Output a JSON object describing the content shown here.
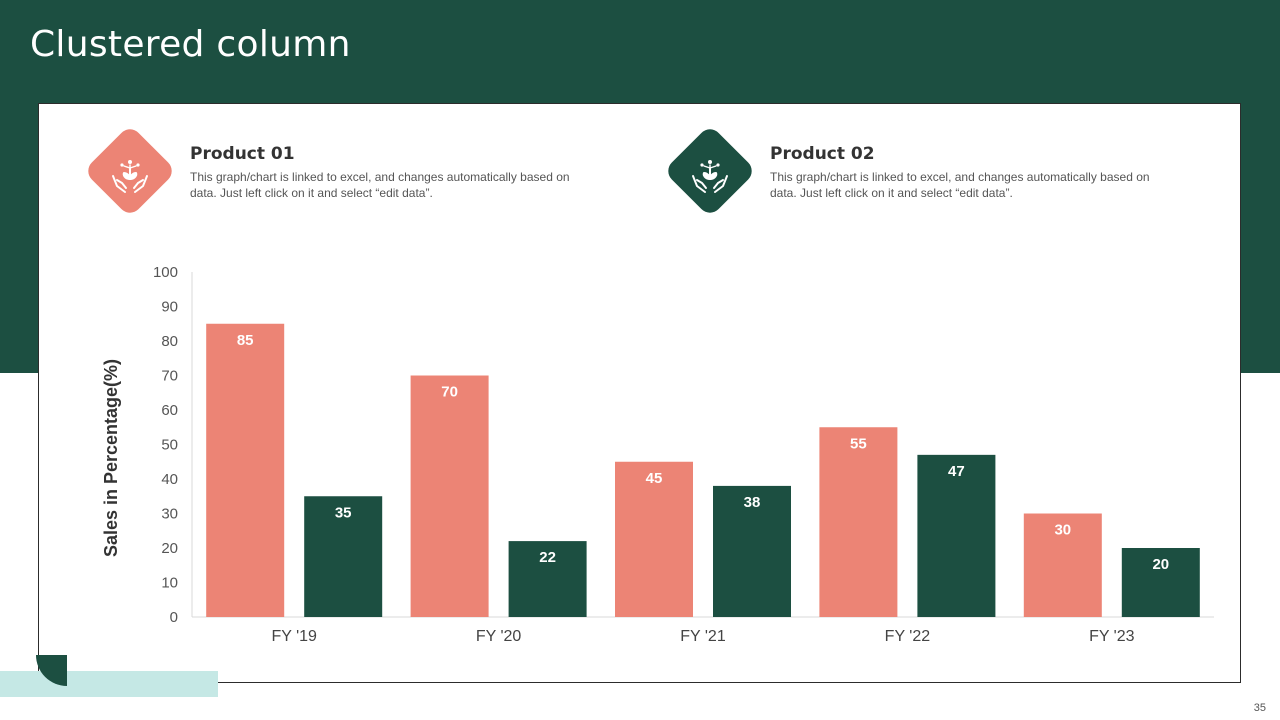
{
  "slide": {
    "title": "Clustered column",
    "page_number": "35"
  },
  "colors": {
    "brand_green": "#1c4f41",
    "accent_salmon": "#ec8475",
    "light_teal": "#c5e8e5"
  },
  "products": [
    {
      "title": "Product 01",
      "description": "This graph/chart is linked to excel, and changes automatically based on data. Just left click on it and select “edit data”.",
      "icon": "hands-holding-plant-icon"
    },
    {
      "title": "Product 02",
      "description": "This graph/chart is linked to excel, and changes automatically based on data. Just left click on it and select “edit data”.",
      "icon": "hands-holding-plant-icon"
    }
  ],
  "chart_data": {
    "type": "bar",
    "title": "",
    "xlabel": "",
    "ylabel": "Sales in Percentage(%)",
    "ylim": [
      0,
      100
    ],
    "yticks": [
      0,
      10,
      20,
      30,
      40,
      50,
      60,
      70,
      80,
      90,
      100
    ],
    "categories": [
      "FY '19",
      "FY '20",
      "FY '21",
      "FY '22",
      "FY '23"
    ],
    "grid": false,
    "data_labels": true,
    "series": [
      {
        "name": "Product 01",
        "color": "#ec8475",
        "values": [
          85,
          70,
          45,
          55,
          30
        ]
      },
      {
        "name": "Product 02",
        "color": "#1c4f41",
        "values": [
          35,
          22,
          38,
          47,
          20
        ]
      }
    ]
  }
}
